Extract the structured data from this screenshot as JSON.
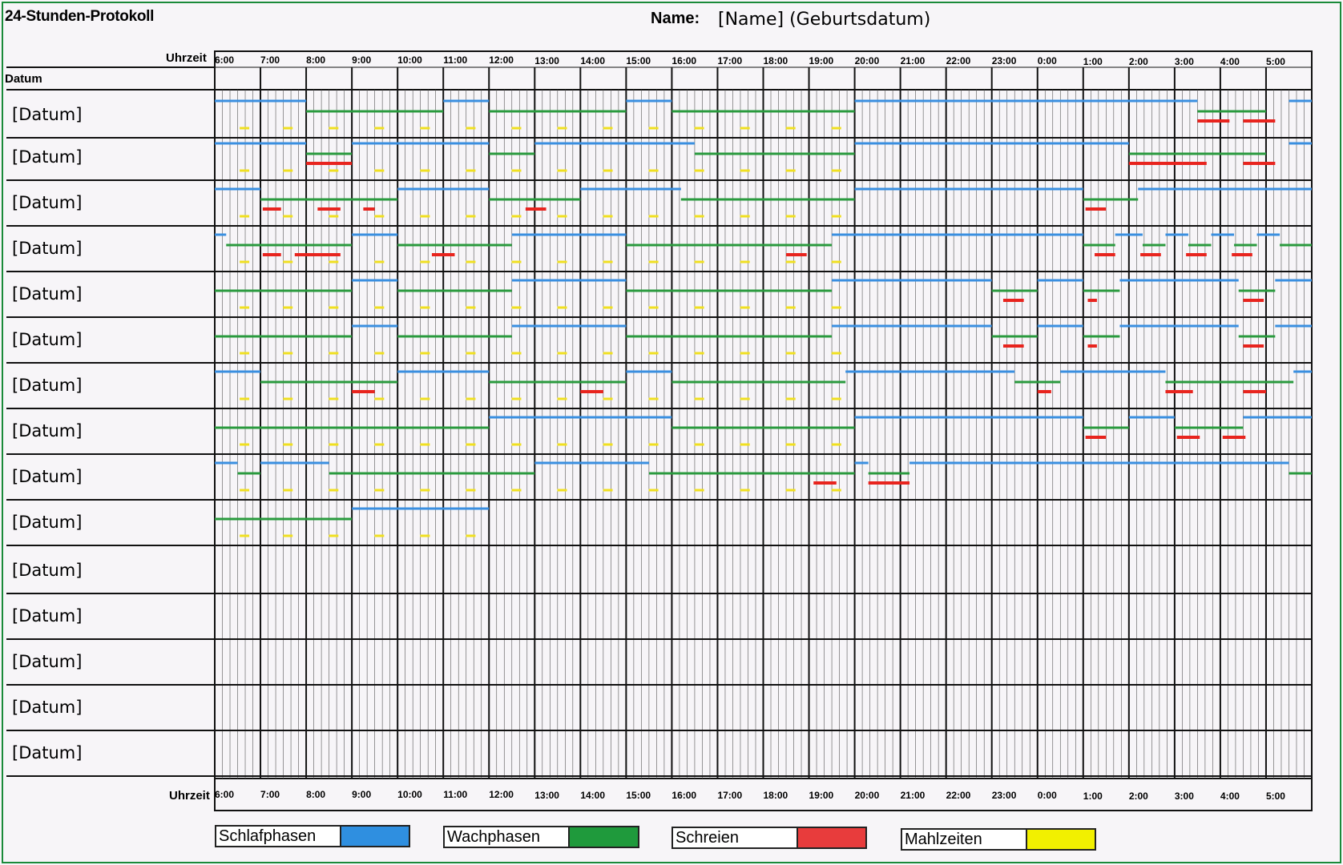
{
  "header": {
    "title": "24-Stunden-Protokoll",
    "name_label": "Name:",
    "name_value": "[Name] (Geburtsdatum)"
  },
  "table": {
    "time_header": "Uhrzeit",
    "date_header": "Datum",
    "hours": [
      "6:00",
      "7:00",
      "8:00",
      "9:00",
      "10:00",
      "11:00",
      "12:00",
      "13:00",
      "14:00",
      "15:00",
      "16:00",
      "17:00",
      "18:00",
      "19:00",
      "20:00",
      "21:00",
      "22:00",
      "23:00",
      "0:00",
      "1:00",
      "2:00",
      "3:00",
      "4:00",
      "5:00"
    ],
    "rows": [
      {
        "label": "[Datum]"
      },
      {
        "label": "[Datum]"
      },
      {
        "label": "[Datum]"
      },
      {
        "label": "[Datum]"
      },
      {
        "label": "[Datum]"
      },
      {
        "label": "[Datum]"
      },
      {
        "label": "[Datum]"
      },
      {
        "label": "[Datum]"
      },
      {
        "label": "[Datum]"
      },
      {
        "label": "[Datum]"
      },
      {
        "label": "[Datum]"
      },
      {
        "label": "[Datum]"
      },
      {
        "label": "[Datum]"
      },
      {
        "label": "[Datum]"
      },
      {
        "label": "[Datum]"
      }
    ]
  },
  "legend": [
    {
      "label": "Schlafphasen",
      "color": "#2f8fe0"
    },
    {
      "label": "Wachphasen",
      "color": "#1f9a3c"
    },
    {
      "label": "Schreien",
      "color": "#e83c3c"
    },
    {
      "label": "Mahlzeiten",
      "color": "#f2f000"
    }
  ],
  "colors": {
    "sleep": "#3a8fe0",
    "awake": "#2a9a3e",
    "cry": "#e8241e",
    "meal": "#f0e020"
  },
  "chart_data": {
    "type": "table",
    "unit": "hours since 6:00",
    "rows": [
      {
        "sleep": [
          [
            0,
            2
          ],
          [
            5,
            6
          ],
          [
            9,
            10
          ],
          [
            14,
            21.5
          ],
          [
            23.5,
            24
          ]
        ],
        "awake": [
          [
            2,
            5
          ],
          [
            6,
            9
          ],
          [
            10,
            14
          ],
          [
            21.5,
            23
          ]
        ],
        "cry": [
          [
            21.5,
            22.2
          ],
          [
            22.5,
            23.2
          ]
        ],
        "meal": [
          0.65,
          1.6,
          2.6,
          3.6,
          4.6,
          5.6,
          6.6,
          7.6,
          8.6,
          9.6,
          10.6,
          11.6,
          12.6,
          13.6
        ]
      },
      {
        "sleep": [
          [
            0,
            2
          ],
          [
            3,
            6
          ],
          [
            7,
            10.5
          ],
          [
            14,
            20
          ],
          [
            23.5,
            24
          ]
        ],
        "awake": [
          [
            2,
            3
          ],
          [
            6,
            7
          ],
          [
            10.5,
            14
          ],
          [
            20,
            23
          ]
        ],
        "cry": [
          [
            2,
            3
          ],
          [
            20,
            21.7
          ],
          [
            22.5,
            23.2
          ]
        ],
        "meal": [
          0.65,
          1.6,
          2.6,
          3.6,
          4.6,
          5.6,
          6.6,
          7.6,
          8.6,
          9.6,
          10.6,
          11.6,
          12.6,
          13.6
        ]
      },
      {
        "sleep": [
          [
            0,
            1
          ],
          [
            4,
            6
          ],
          [
            8,
            10.2
          ],
          [
            14,
            19
          ],
          [
            20.2,
            24
          ]
        ],
        "awake": [
          [
            1,
            4
          ],
          [
            6,
            8
          ],
          [
            10.2,
            14
          ],
          [
            19,
            20.2
          ]
        ],
        "cry": [
          [
            1.05,
            1.45
          ],
          [
            2.25,
            2.75
          ],
          [
            3.25,
            3.5
          ],
          [
            6.8,
            7.25
          ],
          [
            19.05,
            19.5
          ]
        ],
        "meal": [
          0.65,
          1.6,
          2.6,
          3.6,
          4.6,
          5.6,
          6.6,
          7.6,
          8.6,
          9.6,
          10.6,
          11.6,
          12.6,
          13.6
        ]
      },
      {
        "sleep": [
          [
            0,
            0.25
          ],
          [
            3,
            4
          ],
          [
            6.5,
            9
          ],
          [
            13.5,
            19
          ],
          [
            19.7,
            20.3
          ],
          [
            20.8,
            21.3
          ],
          [
            21.8,
            22.3
          ],
          [
            22.8,
            23.3
          ]
        ],
        "awake": [
          [
            0.25,
            3
          ],
          [
            4,
            6.5
          ],
          [
            9,
            13.5
          ],
          [
            19,
            19.7
          ],
          [
            20.3,
            20.8
          ],
          [
            21.3,
            21.8
          ],
          [
            22.3,
            22.8
          ],
          [
            23.3,
            24
          ]
        ],
        "cry": [
          [
            1.05,
            1.45
          ],
          [
            1.75,
            2.75
          ],
          [
            4.75,
            5.25
          ],
          [
            12.5,
            12.95
          ],
          [
            19.25,
            19.7
          ],
          [
            20.25,
            20.7
          ],
          [
            21.25,
            21.7
          ],
          [
            22.25,
            22.7
          ]
        ],
        "meal": [
          0.65,
          1.6,
          2.6,
          3.6,
          4.6,
          5.6,
          6.6,
          7.6,
          8.6,
          9.6,
          10.6,
          11.6,
          12.6,
          13.6
        ]
      },
      {
        "sleep": [
          [
            3,
            4
          ],
          [
            6.5,
            9
          ],
          [
            13.5,
            17
          ],
          [
            18,
            19
          ],
          [
            19.8,
            22.4
          ],
          [
            23.2,
            24
          ]
        ],
        "awake": [
          [
            0,
            3
          ],
          [
            4,
            6.5
          ],
          [
            9,
            13.5
          ],
          [
            17,
            18
          ],
          [
            19,
            19.8
          ],
          [
            22.4,
            23.2
          ]
        ],
        "cry": [
          [
            17.25,
            17.7
          ],
          [
            19.1,
            19.3
          ],
          [
            22.5,
            22.95
          ]
        ],
        "meal": [
          0.65,
          1.6,
          2.6,
          3.6,
          4.6,
          5.6,
          6.6,
          7.6,
          8.6,
          9.6,
          10.6,
          11.6,
          12.6,
          13.6
        ]
      },
      {
        "sleep": [
          [
            3,
            4
          ],
          [
            6.5,
            9
          ],
          [
            13.5,
            17
          ],
          [
            18,
            19
          ],
          [
            19.8,
            22.4
          ],
          [
            23.2,
            24
          ]
        ],
        "awake": [
          [
            0,
            3
          ],
          [
            4,
            6.5
          ],
          [
            9,
            13.5
          ],
          [
            17,
            18
          ],
          [
            19,
            19.8
          ],
          [
            22.4,
            23.2
          ]
        ],
        "cry": [
          [
            17.25,
            17.7
          ],
          [
            19.1,
            19.3
          ],
          [
            22.5,
            22.95
          ]
        ],
        "meal": [
          0.65,
          1.6,
          2.6,
          3.6,
          4.6,
          5.6,
          6.6,
          7.6,
          8.6,
          9.6,
          10.6,
          11.6,
          12.6,
          13.6
        ]
      },
      {
        "sleep": [
          [
            0,
            1
          ],
          [
            4,
            6
          ],
          [
            9,
            10
          ],
          [
            13.8,
            17.5
          ],
          [
            18.5,
            20.8
          ],
          [
            23.6,
            24
          ]
        ],
        "awake": [
          [
            1,
            4
          ],
          [
            6,
            9
          ],
          [
            10,
            13.8
          ],
          [
            17.5,
            18.5
          ],
          [
            20.8,
            23.6
          ]
        ],
        "cry": [
          [
            3,
            3.5
          ],
          [
            8,
            8.5
          ],
          [
            18,
            18.3
          ],
          [
            20.8,
            21.4
          ],
          [
            22.5,
            23
          ]
        ],
        "meal": [
          0.65,
          1.6,
          2.6,
          3.6,
          4.6,
          5.6,
          6.6,
          7.6,
          8.6,
          9.6,
          10.6,
          11.6,
          12.6,
          13.6
        ]
      },
      {
        "sleep": [
          [
            6,
            10
          ],
          [
            14,
            19
          ],
          [
            20,
            21
          ],
          [
            22.5,
            24
          ]
        ],
        "awake": [
          [
            0,
            6
          ],
          [
            10,
            14
          ],
          [
            19,
            20
          ],
          [
            21,
            22.5
          ]
        ],
        "cry": [
          [
            19.05,
            19.5
          ],
          [
            21.05,
            21.55
          ],
          [
            22.05,
            22.55
          ]
        ],
        "meal": [
          0.65,
          1.6,
          2.6,
          3.6,
          4.6,
          5.6,
          6.6,
          7.6,
          8.6,
          9.6,
          10.6,
          11.6,
          12.6,
          13.6
        ]
      },
      {
        "sleep": [
          [
            0,
            0.5
          ],
          [
            1,
            2.5
          ],
          [
            7,
            9.5
          ],
          [
            14,
            14.3
          ],
          [
            15.2,
            23.5
          ]
        ],
        "awake": [
          [
            0.5,
            1
          ],
          [
            2.5,
            7
          ],
          [
            9.5,
            14
          ],
          [
            14.3,
            15.2
          ],
          [
            23.5,
            24
          ]
        ],
        "cry": [
          [
            13.1,
            13.6
          ],
          [
            14.3,
            15.2
          ]
        ],
        "meal": [
          0.65,
          1.6,
          2.6,
          3.6,
          4.6,
          5.6,
          6.6,
          7.6,
          8.6,
          9.6,
          10.6,
          11.6,
          12.6,
          13.6
        ]
      },
      {
        "sleep": [
          [
            3,
            6
          ]
        ],
        "awake": [
          [
            0,
            3
          ]
        ],
        "cry": [],
        "meal": [
          0.65,
          1.6,
          2.6,
          3.6,
          4.6,
          5.6
        ]
      },
      {
        "sleep": [],
        "awake": [],
        "cry": [],
        "meal": []
      },
      {
        "sleep": [],
        "awake": [],
        "cry": [],
        "meal": []
      },
      {
        "sleep": [],
        "awake": [],
        "cry": [],
        "meal": []
      },
      {
        "sleep": [],
        "awake": [],
        "cry": [],
        "meal": []
      },
      {
        "sleep": [],
        "awake": [],
        "cry": [],
        "meal": []
      }
    ]
  }
}
